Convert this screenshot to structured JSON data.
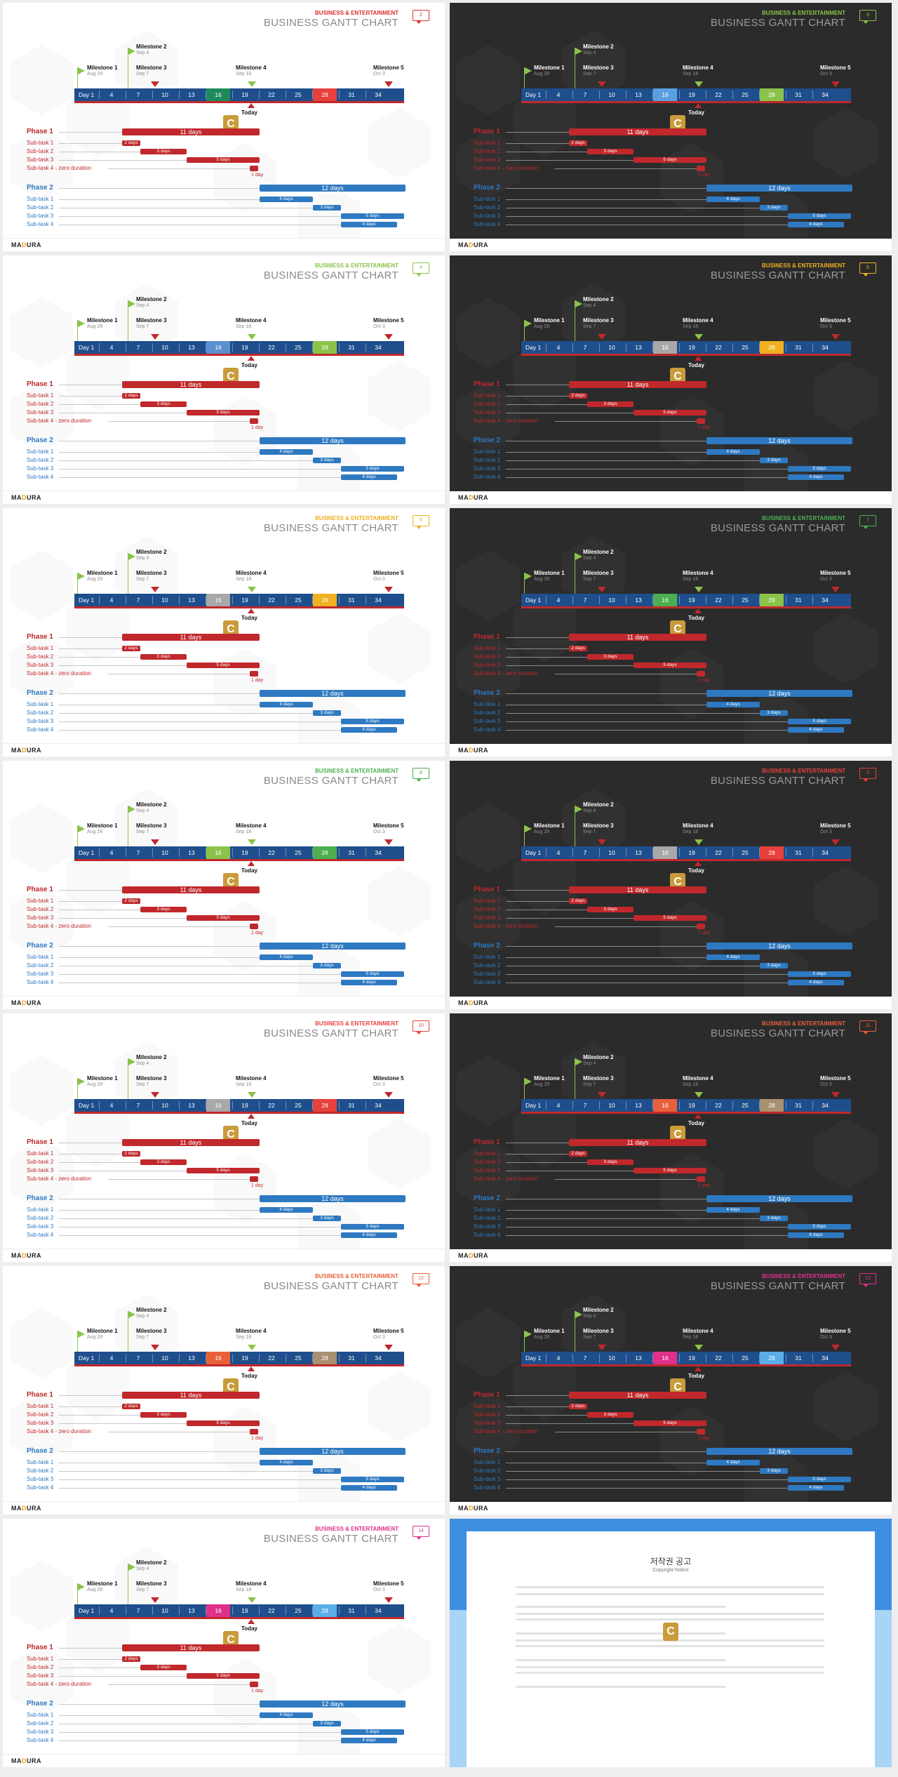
{
  "deck": {
    "category": "BUSINESS & ENTERTAINMENT",
    "title": "BUSINESS GANTT CHART",
    "logo": {
      "left": "MA",
      "mid": "D",
      "right": "URA"
    },
    "today_label": "Today",
    "watermark_letter": "C"
  },
  "timeline_ticks": [
    "Day 1",
    "4",
    "7",
    "10",
    "13",
    "16",
    "19",
    "22",
    "25",
    "28",
    "31",
    "34"
  ],
  "milestones": [
    {
      "label": "Milestone 1",
      "date": "Aug 29"
    },
    {
      "label": "Milestone 2",
      "date": "Sep 4"
    },
    {
      "label": "Milestone 3",
      "date": "Sep 7"
    },
    {
      "label": "Milestone 4",
      "date": "Sep 18"
    },
    {
      "label": "Milestone 5",
      "date": "Oct 3"
    }
  ],
  "phase1": {
    "label": "Phase 1",
    "duration": "11 days",
    "subtasks": [
      {
        "label": "Sub-task 1",
        "duration": "2 days"
      },
      {
        "label": "Sub-task 2",
        "duration": "3 days"
      },
      {
        "label": "Sub-task 3",
        "duration": "5 days"
      },
      {
        "label": "Sub-task 4 - zero duration",
        "duration": "1 day"
      }
    ]
  },
  "phase2": {
    "label": "Phase 2",
    "duration": "12 days",
    "subtasks": [
      {
        "label": "Sub-task 1",
        "duration": "4 days"
      },
      {
        "label": "Sub-task 2",
        "duration": "3 days"
      },
      {
        "label": "Sub-task 3",
        "duration": "5 days"
      },
      {
        "label": "Sub-task 4",
        "duration": "4 days"
      }
    ]
  },
  "slides": [
    {
      "page": "2",
      "theme": "light",
      "accent": "#d9302c",
      "hl16": "#1e8a5a",
      "hl28": "#e8403a"
    },
    {
      "page": "3",
      "theme": "dark",
      "accent": "#8bc34a",
      "hl16": "#5aa0e0",
      "hl28": "#8bc34a"
    },
    {
      "page": "4",
      "theme": "light",
      "accent": "#8bc34a",
      "hl16": "#5a8fd0",
      "hl28": "#8bc34a"
    },
    {
      "page": "5",
      "theme": "dark",
      "accent": "#f0b020",
      "hl16": "#a8a8a8",
      "hl28": "#f0b020"
    },
    {
      "page": "6",
      "theme": "light",
      "accent": "#f0b020",
      "hl16": "#a8a8a8",
      "hl28": "#f0b020"
    },
    {
      "page": "7",
      "theme": "dark",
      "accent": "#4caf50",
      "hl16": "#4caf50",
      "hl28": "#8bc34a"
    },
    {
      "page": "8",
      "theme": "light",
      "accent": "#4caf50",
      "hl16": "#8bc34a",
      "hl28": "#4caf50"
    },
    {
      "page": "9",
      "theme": "dark",
      "accent": "#e8403a",
      "hl16": "#a8a8a8",
      "hl28": "#e8403a"
    },
    {
      "page": "10",
      "theme": "light",
      "accent": "#e8403a",
      "hl16": "#a8a8a8",
      "hl28": "#e8403a"
    },
    {
      "page": "11",
      "theme": "dark",
      "accent": "#e8603a",
      "hl16": "#e8603a",
      "hl28": "#a89070"
    },
    {
      "page": "12",
      "theme": "light",
      "accent": "#e8603a",
      "hl16": "#e8603a",
      "hl28": "#a89070"
    },
    {
      "page": "13",
      "theme": "dark",
      "accent": "#e0308a",
      "hl16": "#e0308a",
      "hl28": "#5aaee8"
    },
    {
      "page": "14",
      "theme": "light",
      "accent": "#e0308a",
      "hl16": "#e0308a",
      "hl28": "#5aaee8"
    }
  ],
  "copyright": {
    "title": "저작권 공고",
    "subtitle": "Copyright Notice"
  }
}
